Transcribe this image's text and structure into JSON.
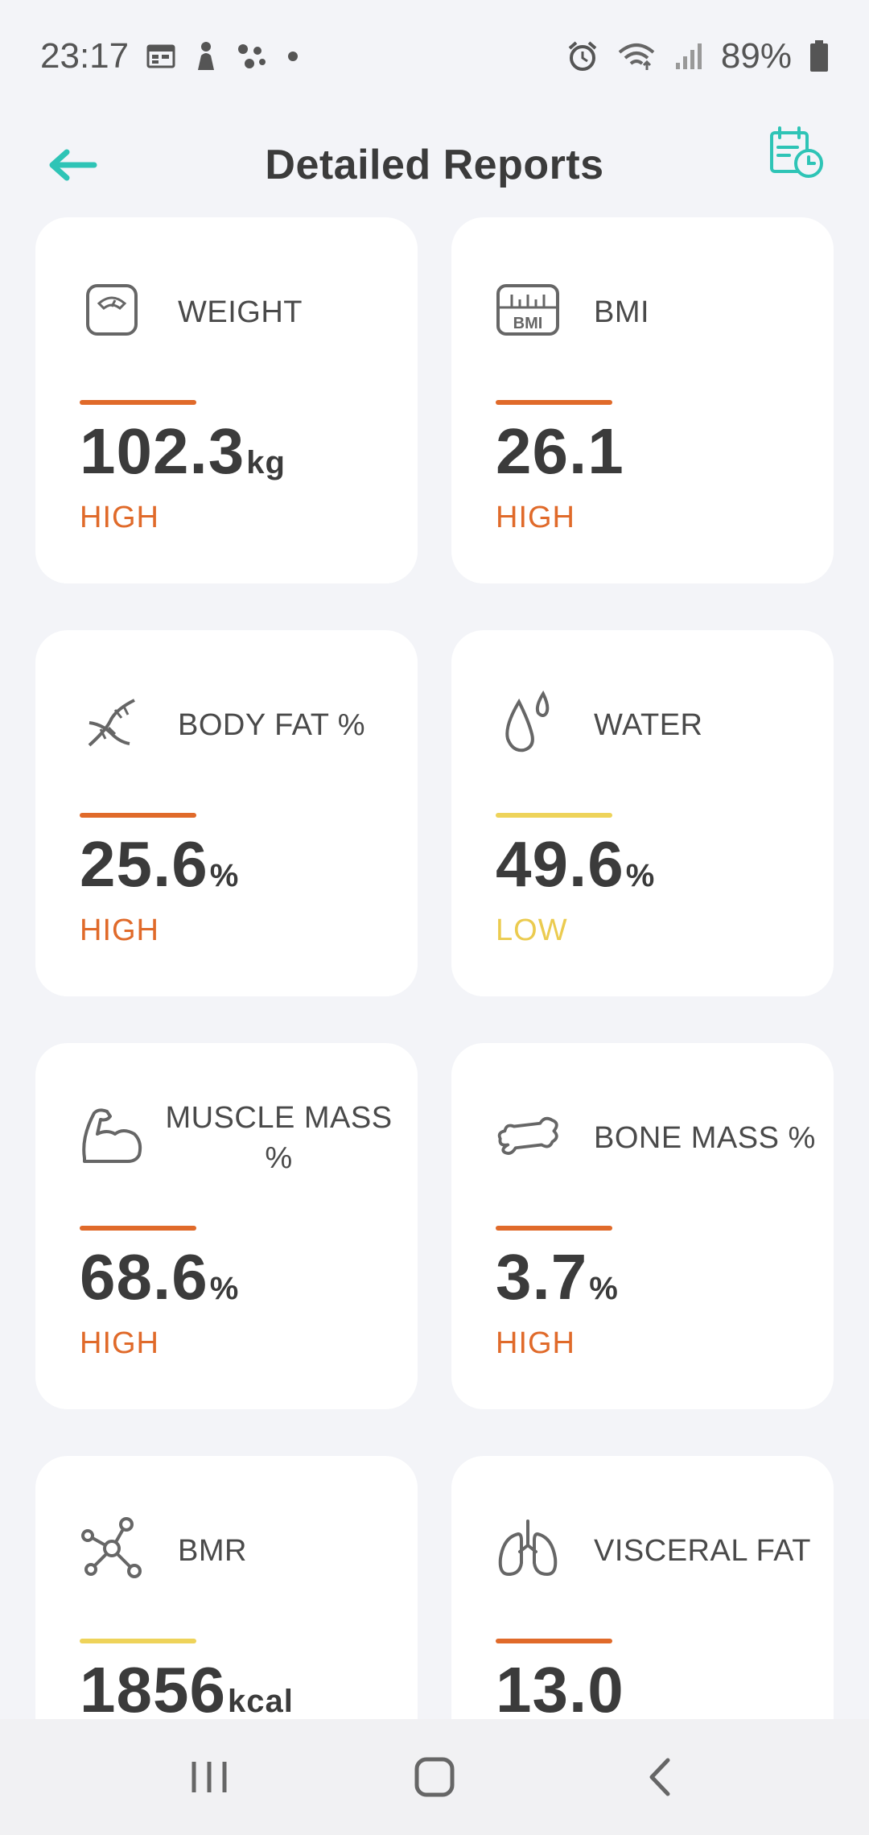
{
  "status_bar": {
    "time": "23:17",
    "battery": "89%",
    "icons_left": [
      "calendar-icon",
      "person-icon",
      "dots-icon",
      "dot-icon"
    ],
    "icons_right": [
      "alarm-icon",
      "wifi-icon",
      "signal-icon",
      "battery-icon"
    ]
  },
  "header": {
    "title": "Detailed Reports",
    "back_icon": "arrow-left-icon",
    "history_icon": "calendar-clock-icon",
    "accent": "#2ec4b6"
  },
  "colors": {
    "high": "#e06a2a",
    "low": "#ebcb4f",
    "text": "#3b3b3b"
  },
  "cards": [
    {
      "label": "WEIGHT",
      "value": "102.3",
      "unit": "kg",
      "status": "HIGH",
      "level": "high",
      "icon": "scale-icon"
    },
    {
      "label": "BMI",
      "value": "26.1",
      "unit": "",
      "status": "HIGH",
      "level": "high",
      "icon": "bmi-icon",
      "icon_text": "BMI"
    },
    {
      "label": "BODY FAT %",
      "value": "25.6",
      "unit": "%",
      "status": "HIGH",
      "level": "high",
      "icon": "dna-icon"
    },
    {
      "label": "WATER",
      "value": "49.6",
      "unit": "%",
      "status": "LOW",
      "level": "low",
      "icon": "water-drops-icon"
    },
    {
      "label": "MUSCLE MASS %",
      "value": "68.6",
      "unit": "%",
      "status": "HIGH",
      "level": "high",
      "icon": "muscle-icon"
    },
    {
      "label": "BONE MASS %",
      "value": "3.7",
      "unit": "%",
      "status": "HIGH",
      "level": "high",
      "icon": "bone-icon"
    },
    {
      "label": "BMR",
      "value": "1856",
      "unit": "kcal",
      "status": "",
      "level": "low",
      "icon": "molecule-icon"
    },
    {
      "label": "VISCERAL FAT",
      "value": "13.0",
      "unit": "",
      "status": "",
      "level": "high",
      "icon": "lungs-icon"
    }
  ],
  "nav": {
    "buttons": [
      "recent-apps",
      "home",
      "back"
    ]
  }
}
